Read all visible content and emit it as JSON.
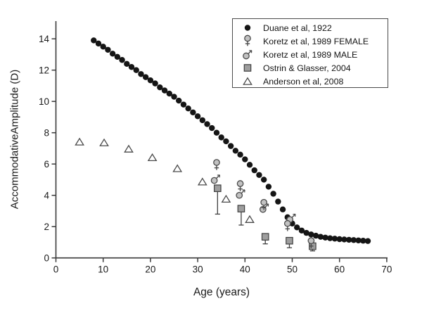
{
  "chart_data": {
    "type": "scatter",
    "title": "",
    "xlabel": "Age (years)",
    "ylabel": "AccommodativeAmplitude (D)",
    "xlim": [
      0,
      70
    ],
    "ylim": [
      0,
      15
    ],
    "x_ticks": [
      0,
      10,
      20,
      30,
      40,
      50,
      60,
      70
    ],
    "y_ticks": [
      0,
      2,
      4,
      6,
      8,
      10,
      12,
      14
    ],
    "grid": false,
    "legend_position": "top-right-inside",
    "axis_color": "#3a3a3a",
    "text_color": "#1a1a1a",
    "series": [
      {
        "name": "Duane et al, 1922",
        "marker": "filled-circle",
        "fill": "#151515",
        "stroke": "#151515",
        "points": [
          [
            8,
            13.9
          ],
          [
            9,
            13.7
          ],
          [
            10,
            13.5
          ],
          [
            11,
            13.3
          ],
          [
            12,
            13.05
          ],
          [
            13,
            12.85
          ],
          [
            14,
            12.65
          ],
          [
            15,
            12.4
          ],
          [
            16,
            12.2
          ],
          [
            17,
            12.0
          ],
          [
            18,
            11.75
          ],
          [
            19,
            11.55
          ],
          [
            20,
            11.35
          ],
          [
            21,
            11.15
          ],
          [
            22,
            10.9
          ],
          [
            23,
            10.7
          ],
          [
            24,
            10.5
          ],
          [
            25,
            10.3
          ],
          [
            26,
            10.05
          ],
          [
            27,
            9.8
          ],
          [
            28,
            9.55
          ],
          [
            29,
            9.3
          ],
          [
            30,
            9.05
          ],
          [
            31,
            8.8
          ],
          [
            32,
            8.55
          ],
          [
            33,
            8.3
          ],
          [
            34,
            8.0
          ],
          [
            35,
            7.7
          ],
          [
            36,
            7.45
          ],
          [
            37,
            7.15
          ],
          [
            38,
            6.85
          ],
          [
            39,
            6.6
          ],
          [
            40,
            6.3
          ],
          [
            41,
            5.95
          ],
          [
            42,
            5.6
          ],
          [
            43,
            5.3
          ],
          [
            44,
            5.0
          ],
          [
            45,
            4.55
          ],
          [
            46,
            4.1
          ],
          [
            47,
            3.6
          ],
          [
            48,
            3.1
          ],
          [
            49,
            2.6
          ],
          [
            50,
            2.2
          ],
          [
            51,
            1.95
          ],
          [
            52,
            1.75
          ],
          [
            53,
            1.6
          ],
          [
            54,
            1.5
          ],
          [
            55,
            1.42
          ],
          [
            56,
            1.35
          ],
          [
            57,
            1.3
          ],
          [
            58,
            1.26
          ],
          [
            59,
            1.23
          ],
          [
            60,
            1.2
          ],
          [
            61,
            1.18
          ],
          [
            62,
            1.16
          ],
          [
            63,
            1.14
          ],
          [
            64,
            1.12
          ],
          [
            65,
            1.1
          ],
          [
            66,
            1.08
          ]
        ]
      },
      {
        "name": "Koretz et al, 1989 FEMALE",
        "marker": "female-symbol",
        "fill": "#c2c2c2",
        "stroke": "#4a4a4a",
        "points": [
          [
            34,
            6.1
          ],
          [
            39,
            4.75
          ],
          [
            44,
            3.55
          ],
          [
            49,
            2.2
          ],
          [
            54,
            1.1
          ]
        ]
      },
      {
        "name": "Koretz et al, 1989 MALE",
        "marker": "male-symbol",
        "fill": "#c2c2c2",
        "stroke": "#4a4a4a",
        "points": [
          [
            33.5,
            4.95
          ],
          [
            38.8,
            4.0
          ],
          [
            43.8,
            3.1
          ],
          [
            49.5,
            2.45
          ]
        ]
      },
      {
        "name": "Ostrin & Glasser, 2004",
        "marker": "filled-square",
        "fill": "#9e9e9e",
        "stroke": "#3f3f3f",
        "points": [
          [
            34.2,
            4.45
          ],
          [
            39.2,
            3.15
          ],
          [
            44.3,
            1.35
          ],
          [
            49.4,
            1.1
          ],
          [
            54.3,
            0.75
          ]
        ],
        "error_low": [
          1.65,
          1.05,
          0.45,
          0.45,
          0.3
        ]
      },
      {
        "name": "Anderson et al, 2008",
        "marker": "open-triangle",
        "fill": "#ffffff",
        "stroke": "#4a4a4a",
        "points": [
          [
            5,
            7.4
          ],
          [
            10.2,
            7.35
          ],
          [
            15.4,
            6.95
          ],
          [
            20.4,
            6.4
          ],
          [
            25.7,
            5.7
          ],
          [
            31,
            4.85
          ],
          [
            36,
            3.75
          ],
          [
            41,
            2.45
          ]
        ]
      }
    ]
  }
}
